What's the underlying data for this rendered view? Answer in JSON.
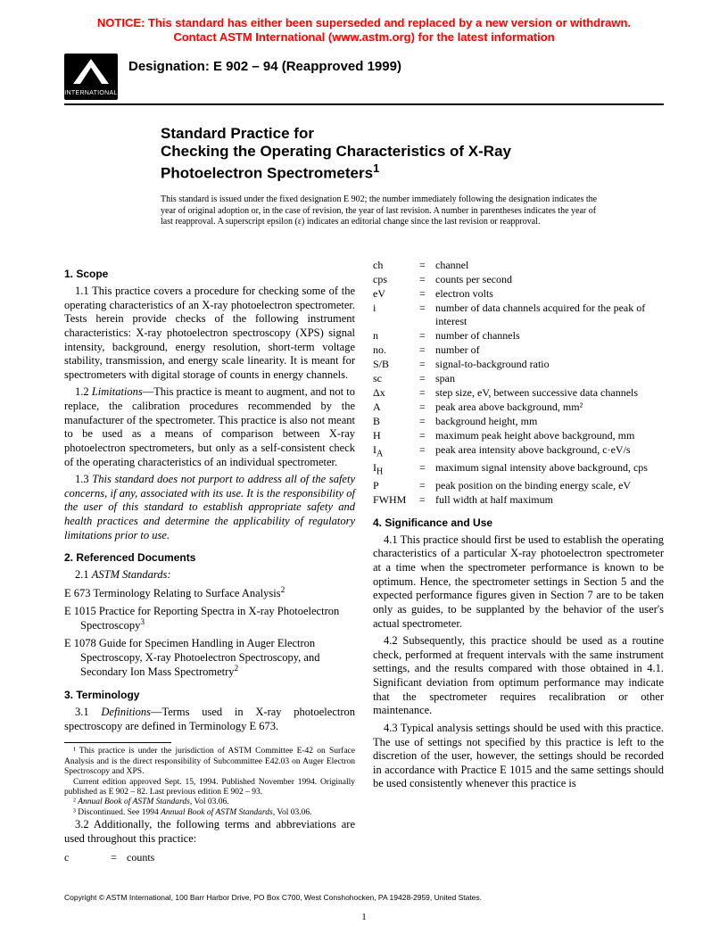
{
  "colors": {
    "notice": "#ff0000",
    "text": "#000000",
    "background": "#ffffff"
  },
  "notice": {
    "line1": "NOTICE: This standard has either been superseded and replaced by a new version or withdrawn.",
    "line2": "Contact ASTM International (www.astm.org) for the latest information"
  },
  "logo_text": "INTERNATIONAL",
  "designation": "Designation: E 902 – 94 (Reapproved 1999)",
  "title": {
    "line1": "Standard Practice for",
    "line2": "Checking the Operating Characteristics of X-Ray",
    "line3": "Photoelectron Spectrometers",
    "sup": "1"
  },
  "issuance": "This standard is issued under the fixed designation E 902; the number immediately following the designation indicates the year of original adoption or, in the case of revision, the year of last revision. A number in parentheses indicates the year of last reapproval. A superscript epsilon (ε) indicates an editorial change since the last revision or reapproval.",
  "s1": {
    "head": "1. Scope",
    "p11": "1.1 This practice covers a procedure for checking some of the operating characteristics of an X-ray photoelectron spectrometer. Tests herein provide checks of the following instrument characteristics: X-ray photoelectron spectroscopy (XPS) signal intensity, background, energy resolution, short-term voltage stability, transmission, and energy scale linearity. It is meant for spectrometers with digital storage of counts in energy channels.",
    "p12a": "1.2 ",
    "p12b": "Limitations",
    "p12c": "—This practice is meant to augment, and not to replace, the calibration procedures recommended by the manufacturer of the spectrometer. This practice is also not meant to be used as a means of comparison between X-ray photoelectron spectrometers, but only as a self-consistent check of the operating characteristics of an individual spectrometer.",
    "p13a": "1.3 ",
    "p13b": "This standard does not purport to address all of the safety concerns, if any, associated with its use. It is the responsibility of the user of this standard to establish appropriate safety and health practices and determine the applicability of regulatory limitations prior to use."
  },
  "s2": {
    "head": "2. Referenced Documents",
    "p21a": "2.1 ",
    "p21b": "ASTM Standards:",
    "r1a": "E 673 Terminology Relating to Surface Analysis",
    "r1s": "2",
    "r2a": "E 1015 Practice for Reporting Spectra in X-ray Photoelectron Spectroscopy",
    "r2s": "3",
    "r3a": "E 1078 Guide for Specimen Handling in Auger Electron Spectroscopy, X-ray Photoelectron Spectroscopy, and Secondary Ion Mass Spectrometry",
    "r3s": "2"
  },
  "s3": {
    "head": "3. Terminology",
    "p31a": "3.1 ",
    "p31b": "Definitions",
    "p31c": "—Terms used in X-ray photoelectron spectroscopy are defined in Terminology E 673.",
    "p32": "3.2 Additionally, the following terms and abbreviations are used throughout this practice:"
  },
  "terms": [
    {
      "sym": "c",
      "def": "counts"
    },
    {
      "sym": "ch",
      "def": "channel"
    },
    {
      "sym": "cps",
      "def": "counts per second"
    },
    {
      "sym": "eV",
      "def": "electron volts"
    },
    {
      "sym": "i",
      "def": "number of data channels acquired for the peak of interest"
    },
    {
      "sym": "n",
      "def": "number of channels"
    },
    {
      "sym": "no.",
      "def": "number of"
    },
    {
      "sym": "S/B",
      "def": "signal-to-background ratio"
    },
    {
      "sym": "sc",
      "def": "span"
    },
    {
      "sym": "Δx",
      "def": "step size, eV, between successive data channels"
    },
    {
      "sym": "A",
      "def": "peak area above background, mm²"
    },
    {
      "sym": "B",
      "def": "background height, mm"
    },
    {
      "sym": "H",
      "def": "maximum peak height above background, mm"
    },
    {
      "sym": "I_A",
      "def": "peak area intensity above background, c·eV/s",
      "sub": "A",
      "base": "I"
    },
    {
      "sym": "I_H",
      "def": "maximum signal intensity above background, cps",
      "sub": "H",
      "base": "I"
    },
    {
      "sym": "P",
      "def": "peak position on the binding energy scale, eV"
    },
    {
      "sym": "FWHM",
      "def": "full width at half maximum"
    }
  ],
  "s4": {
    "head": "4. Significance and Use",
    "p41": "4.1 This practice should first be used to establish the operating characteristics of a particular X-ray photoelectron spectrometer at a time when the spectrometer performance is known to be optimum. Hence, the spectrometer settings in Section 5 and the expected performance figures given in Section 7 are to be taken only as guides, to be supplanted by the behavior of the user's actual spectrometer.",
    "p42": "4.2 Subsequently, this practice should be used as a routine check, performed at frequent intervals with the same instrument settings, and the results compared with those obtained in 4.1. Significant deviation from optimum performance may indicate that the spectrometer requires recalibration or other maintenance.",
    "p43": "4.3 Typical analysis settings should be used with this practice. The use of settings not specified by this practice is left to the discretion of the user, however, the settings should be recorded in accordance with Practice E 1015 and the same settings should be used consistently whenever this practice is"
  },
  "footnotes": {
    "f1a": "¹ This practice is under the jurisdiction of ASTM Committee E-42 on Surface Analysis and is the direct responsibility of Subcommittee E42.03 on Auger Electron Spectroscopy and XPS.",
    "f1b": "Current edition approved Sept. 15, 1994. Published November 1994. Originally published as E 902 – 82. Last previous edition E 902 – 93.",
    "f2a": "² ",
    "f2b": "Annual Book of ASTM Standards",
    "f2c": ", Vol 03.06.",
    "f3a": "³ Discontinued. See 1994 ",
    "f3b": "Annual Book of ASTM Standards",
    "f3c": ", Vol 03.06."
  },
  "copyright": "Copyright © ASTM International, 100 Barr Harbor Drive, PO Box C700, West Conshohocken, PA 19428-2959, United States.",
  "pagenum": "1"
}
